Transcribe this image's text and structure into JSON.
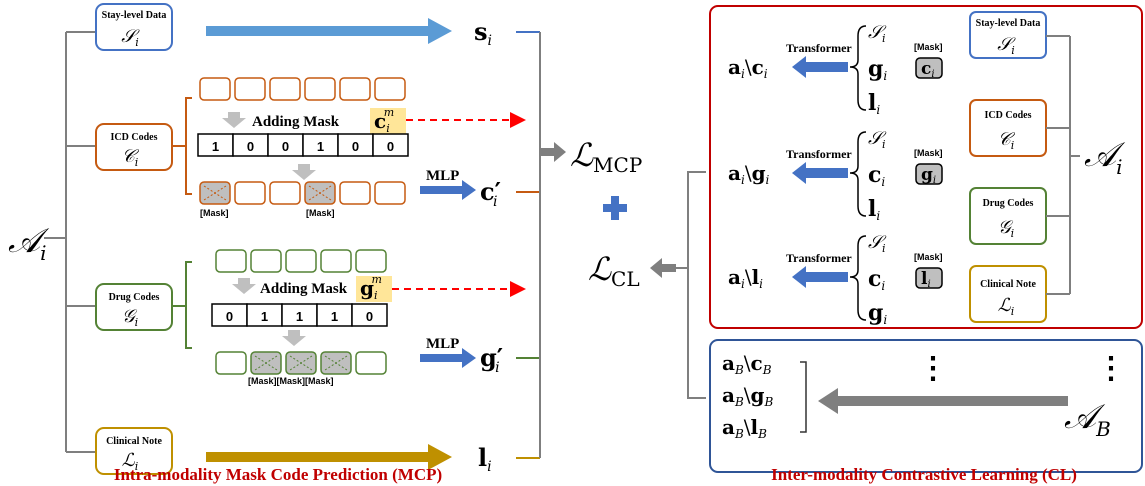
{
  "colors": {
    "blue": "#4472c4",
    "orange": "#c55a11",
    "green": "#548235",
    "gold": "#bf9000",
    "red_title": "#c00000",
    "red_frame": "#c00000",
    "navy_frame": "#2f5597",
    "arrow_blue": "#4472c4",
    "arrow_gray": "#7f7f7f",
    "highlight": "#ffe699"
  },
  "left": {
    "root_symbol": "𝒜",
    "root_sub": "i",
    "modalities": {
      "stay": {
        "title": "Stay-level Data",
        "symbol": "𝒮",
        "sub": "i"
      },
      "icd": {
        "title": "ICD Codes",
        "symbol": "𝒞",
        "sub": "i"
      },
      "drug": {
        "title": "Drug Codes",
        "symbol": "𝒢",
        "sub": "i"
      },
      "note": {
        "title": "Clinical Note",
        "symbol": "ℒ",
        "sub": "i"
      }
    },
    "icd_branch": {
      "adding_mask": "Adding Mask",
      "mask_var": "c",
      "mask_sub": "i",
      "mask_sup": "m",
      "mask_vector": [
        "1",
        "0",
        "0",
        "1",
        "0",
        "0"
      ],
      "mask_label_1": "[Mask]",
      "mask_label_2": "[Mask]",
      "mlp": "MLP",
      "output": "c′",
      "output_sub": "i"
    },
    "drug_branch": {
      "adding_mask": "Adding Mask",
      "mask_var": "g",
      "mask_sub": "i",
      "mask_sup": "m",
      "mask_vector": [
        "0",
        "1",
        "1",
        "1",
        "0"
      ],
      "mask_labels": "[Mask][Mask][Mask]",
      "mlp": "MLP",
      "output": "g′",
      "output_sub": "i"
    },
    "outputs": {
      "s": "s",
      "s_sub": "i",
      "l": "l",
      "l_sub": "i"
    },
    "loss_mcp": "ℒ",
    "loss_mcp_sub": "MCP",
    "plus": "+",
    "loss_cl": "ℒ",
    "loss_cl_sub": "CL",
    "title": "Intra-modality Mask Code Prediction (MCP)"
  },
  "right": {
    "transformer": "Transformer",
    "mask_tag": "[Mask]",
    "groups": [
      {
        "out": "a",
        "out_sub": "i",
        "sep": "\\",
        "removed": "c",
        "removed_sub": "i",
        "in1": "𝒮",
        "in1_sub": "i",
        "in2": "g",
        "in2_sub": "i",
        "masked": "c",
        "masked_sub": "i",
        "in3": "l",
        "in3_sub": "i"
      },
      {
        "out": "a",
        "out_sub": "i",
        "sep": "\\",
        "removed": "g",
        "removed_sub": "i",
        "in1": "𝒮",
        "in1_sub": "i",
        "in2": "c",
        "in2_sub": "i",
        "masked": "g",
        "masked_sub": "i",
        "in3": "l",
        "in3_sub": "i"
      },
      {
        "out": "a",
        "out_sub": "i",
        "sep": "\\",
        "removed": "l",
        "removed_sub": "i",
        "in1": "𝒮",
        "in1_sub": "i",
        "in2": "c",
        "in2_sub": "i",
        "masked": "l",
        "masked_sub": "i",
        "in3": "g",
        "in3_sub": "i"
      }
    ],
    "modalities": {
      "stay": {
        "title": "Stay-level Data",
        "symbol": "𝒮",
        "sub": "i"
      },
      "icd": {
        "title": "ICD Codes",
        "symbol": "𝒞",
        "sub": "i"
      },
      "drug": {
        "title": "Drug Codes",
        "symbol": "𝒢",
        "sub": "i"
      },
      "note": {
        "title": "Clinical Note",
        "symbol": "ℒ",
        "sub": "i"
      }
    },
    "root_symbol": "𝒜",
    "root_sub": "i",
    "batch": {
      "rows": [
        {
          "a": "a",
          "sub": "B",
          "sep": "\\",
          "r": "c",
          "rsub": "B"
        },
        {
          "a": "a",
          "sub": "B",
          "sep": "\\",
          "r": "g",
          "rsub": "B"
        },
        {
          "a": "a",
          "sub": "B",
          "sep": "\\",
          "r": "l",
          "rsub": "B"
        }
      ],
      "root_symbol": "𝒜",
      "root_sub": "B",
      "ellipsis": "⋮"
    },
    "title": "Inter-modality Contrastive Learning (CL)"
  }
}
